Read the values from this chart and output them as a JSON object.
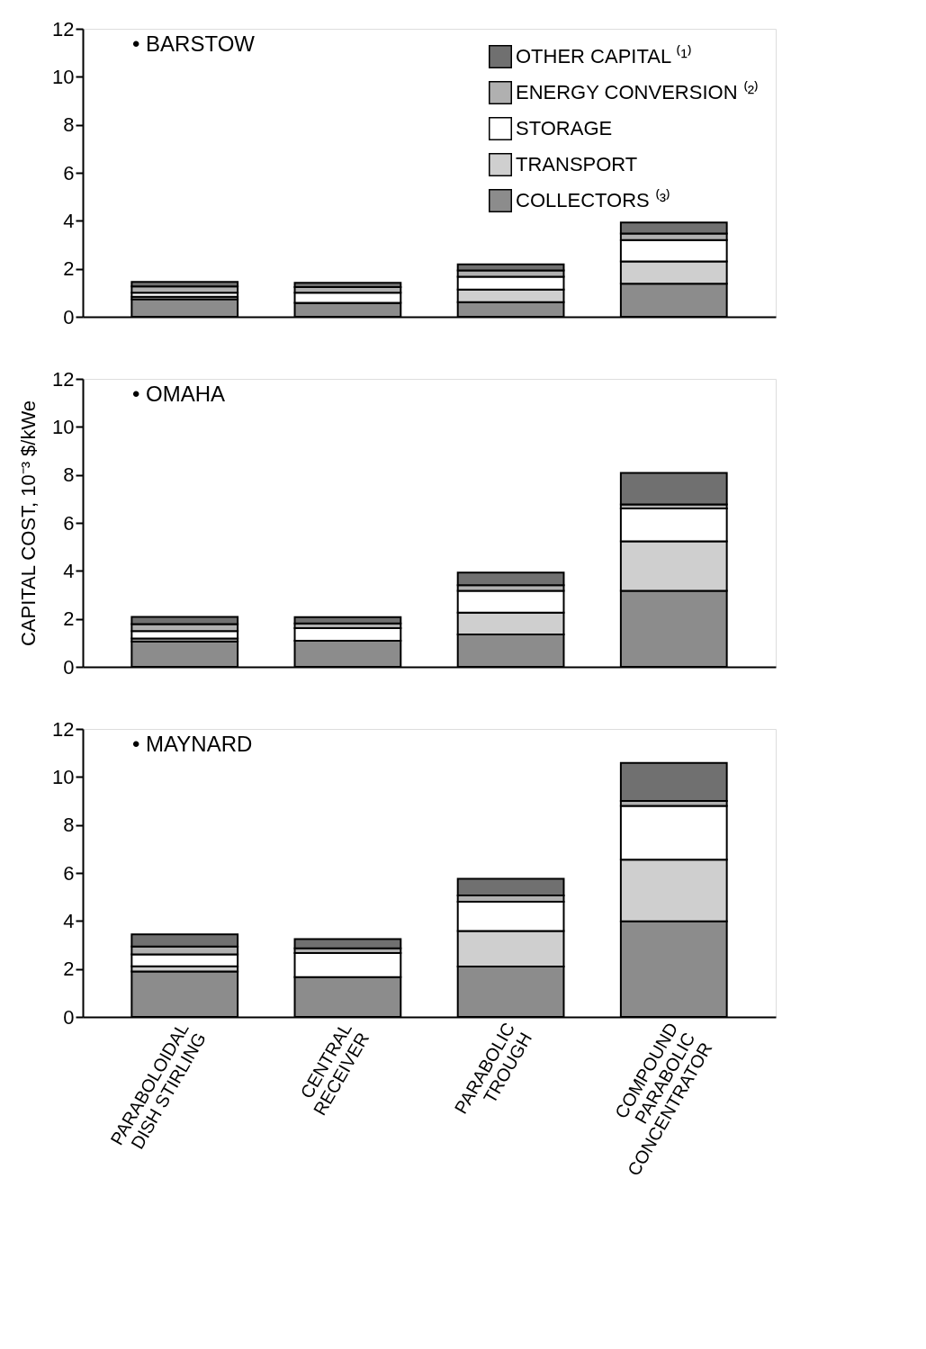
{
  "chart_data": [
    {
      "type": "bar",
      "stacked": true,
      "title": "• BARSTOW",
      "categories": [
        null,
        null,
        null,
        null
      ],
      "ylim": [
        0,
        12
      ],
      "yticks": [
        0,
        2,
        4,
        6,
        8,
        10,
        12
      ],
      "grid": false,
      "legend": "top right",
      "tick_labels": "y",
      "series": [
        {
          "name": "COLLECTORS ⁽³⁾",
          "color": "#8c8c8c",
          "values": [
            0.73,
            0.58,
            0.61,
            1.38
          ]
        },
        {
          "name": "TRANSPORT",
          "color": "#cfcfcf",
          "values": [
            0.1,
            0,
            0.52,
            0.93
          ]
        },
        {
          "name": "STORAGE",
          "color": "#ffffff",
          "values": [
            0.17,
            0.42,
            0.54,
            0.89
          ]
        },
        {
          "name": "ENERGY CONVERSION ⁽²⁾",
          "color": "#b0b0b0",
          "values": [
            0.27,
            0.24,
            0.26,
            0.27
          ]
        },
        {
          "name": "OTHER CAPITAL ⁽¹⁾",
          "color": "#707070",
          "values": [
            0.18,
            0.18,
            0.25,
            0.46
          ]
        }
      ]
    },
    {
      "type": "bar",
      "stacked": true,
      "title": "• OMAHA",
      "ylabel": "CAPITAL COST, 10⁻³ $/kWe",
      "categories": [
        null,
        null,
        null,
        null
      ],
      "ylim": [
        0,
        12
      ],
      "yticks": [
        0,
        2,
        4,
        6,
        8,
        10,
        12
      ],
      "grid": false,
      "legend": false,
      "tick_labels": "y",
      "series": [
        {
          "color": "#8c8c8c",
          "values": [
            1.06,
            1.09,
            1.35,
            3.17
          ]
        },
        {
          "color": "#cfcfcf",
          "values": [
            0.12,
            0,
            0.91,
            2.06
          ]
        },
        {
          "color": "#ffffff",
          "values": [
            0.31,
            0.52,
            0.91,
            1.37
          ]
        },
        {
          "color": "#b0b0b0",
          "values": [
            0.29,
            0.2,
            0.23,
            0.17
          ]
        },
        {
          "color": "#707070",
          "values": [
            0.3,
            0.26,
            0.53,
            1.31
          ]
        }
      ]
    },
    {
      "type": "bar",
      "stacked": true,
      "title": "• MAYNARD",
      "categories": [
        "PARABOLOIDAL\nDISH STIRLING",
        "CENTRAL\nRECEIVER",
        "PARABOLIC\nTROUGH",
        "COMPOUND\nPARABOLIC\nCONCENTRATOR"
      ],
      "ylim": [
        0,
        12
      ],
      "yticks": [
        0,
        2,
        4,
        6,
        8,
        10,
        12
      ],
      "grid": false,
      "legend": false,
      "series": [
        {
          "color": "#8c8c8c",
          "values": [
            1.89,
            1.66,
            2.1,
            3.98
          ]
        },
        {
          "color": "#cfcfcf",
          "values": [
            0.22,
            0,
            1.48,
            2.57
          ]
        },
        {
          "color": "#ffffff",
          "values": [
            0.5,
            1.0,
            1.22,
            2.24
          ]
        },
        {
          "color": "#b0b0b0",
          "values": [
            0.32,
            0.2,
            0.26,
            0.21
          ]
        },
        {
          "color": "#707070",
          "values": [
            0.51,
            0.38,
            0.7,
            1.58
          ]
        }
      ]
    }
  ]
}
